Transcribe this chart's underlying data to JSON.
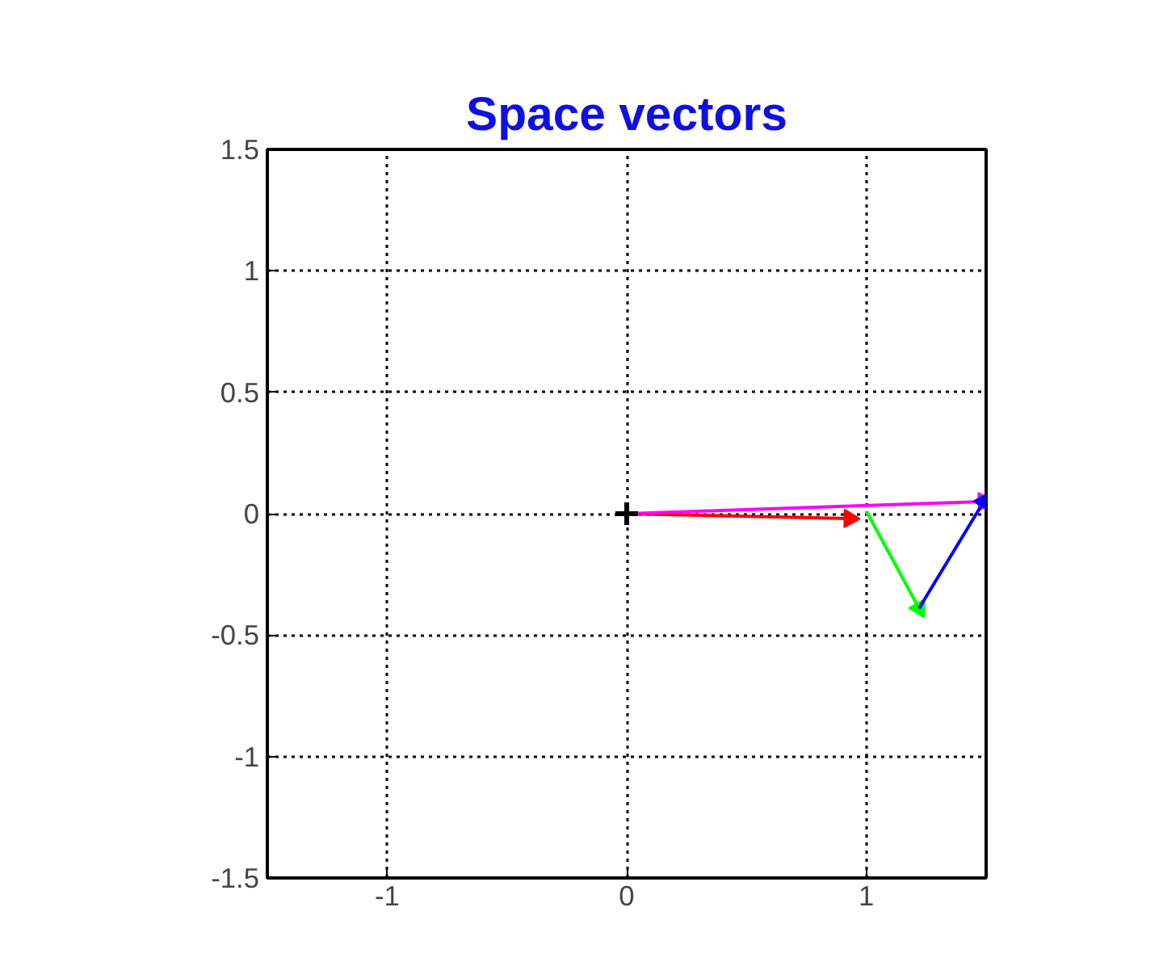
{
  "chart_data": {
    "type": "line",
    "title": "Space vectors",
    "xlim": [
      -1.5,
      1.5
    ],
    "ylim": [
      -1.5,
      1.5
    ],
    "xticks": [
      -1,
      0,
      1
    ],
    "yticks": [
      -1.5,
      -1,
      -0.5,
      0,
      0.5,
      1,
      1.5
    ],
    "grid": true,
    "marker": "triangle",
    "series": [
      {
        "color": "#ff0000",
        "x": [
          0,
          0.93
        ],
        "values": [
          0,
          -0.02
        ]
      },
      {
        "color": "#00ff00",
        "x": [
          1.0,
          1.22
        ],
        "values": [
          0.01,
          -0.39
        ]
      },
      {
        "color": "#ff00ff",
        "x": [
          0,
          1.49
        ],
        "values": [
          0,
          0.05
        ]
      },
      {
        "color": "#0000ff",
        "x": [
          1.22,
          1.49
        ],
        "values": [
          -0.39,
          0.05
        ]
      },
      {
        "type": "scatter",
        "marker": "cross",
        "color": "#000000",
        "x": [
          0
        ],
        "values": [
          0
        ]
      }
    ]
  }
}
